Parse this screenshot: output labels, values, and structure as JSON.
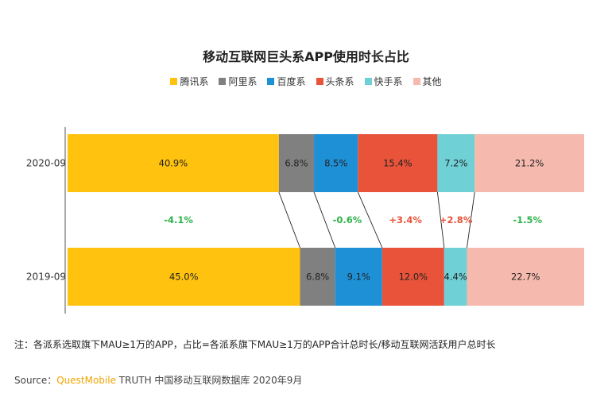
{
  "chart_data": {
    "type": "bar",
    "orientation": "horizontal-stacked-100",
    "title": "移动互联网巨头系APP使用时长占比",
    "legend_position": "top",
    "series": [
      {
        "name": "腾讯系",
        "color": "#FFC20E",
        "values": [
          40.9,
          45.0
        ],
        "labels": [
          "40.9%",
          "45.0%"
        ]
      },
      {
        "name": "阿里系",
        "color": "#808080",
        "values": [
          6.8,
          6.8
        ],
        "labels": [
          "6.8%",
          "6.8%"
        ]
      },
      {
        "name": "百度系",
        "color": "#1E90D6",
        "values": [
          8.5,
          9.1
        ],
        "labels": [
          "8.5%",
          "9.1%"
        ]
      },
      {
        "name": "头条系",
        "color": "#E8533A",
        "values": [
          15.4,
          12.0
        ],
        "labels": [
          "15.4%",
          "12.0%"
        ]
      },
      {
        "name": "快手系",
        "color": "#6FD0D6",
        "values": [
          7.2,
          4.4
        ],
        "labels": [
          "7.2%",
          "4.4%"
        ]
      },
      {
        "name": "其他",
        "color": "#F6B9AE",
        "values": [
          21.2,
          22.7
        ],
        "labels": [
          "21.2%",
          "22.7%"
        ]
      }
    ],
    "categories": [
      "2020-09",
      "2019-09"
    ],
    "changes": [
      {
        "series": "腾讯系",
        "label": "-4.1%",
        "direction": "down"
      },
      {
        "series": "百度系",
        "label": "-0.6%",
        "direction": "down"
      },
      {
        "series": "头条系",
        "label": "+3.4%",
        "direction": "up"
      },
      {
        "series": "快手系",
        "label": "+2.8%",
        "direction": "up"
      },
      {
        "series": "其他",
        "label": "-1.5%",
        "direction": "down"
      }
    ],
    "change_colors": {
      "up": "#E8533A",
      "down": "#2DB34A"
    }
  },
  "note": "注：各派系选取旗下MAU≥1万的APP，占比=各派系旗下MAU≥1万的APP合计总时长/移动互联网活跃用户总时长",
  "source": {
    "prefix": "Source：",
    "brand": "QuestMobile",
    "suffix": " TRUTH 中国移动互联网数据库 2020年9月"
  }
}
